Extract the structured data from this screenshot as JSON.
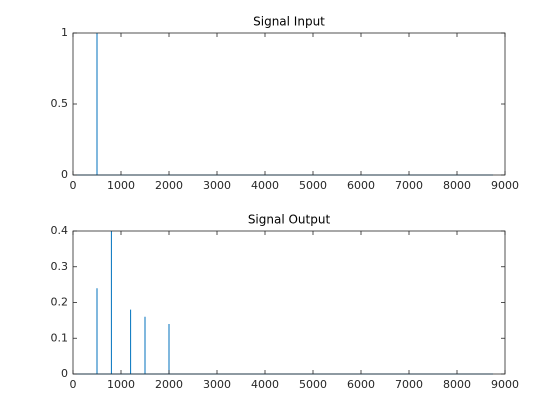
{
  "chart_data": [
    {
      "type": "line",
      "title": "Signal Input",
      "x": [
        0,
        500,
        500,
        500,
        8750
      ],
      "values": [
        0,
        0,
        1,
        0,
        0
      ],
      "color": "#0072bd",
      "xlim": [
        0,
        9000
      ],
      "xticks": [
        0,
        1000,
        2000,
        3000,
        4000,
        5000,
        6000,
        7000,
        8000,
        9000
      ],
      "ylim": [
        0,
        1
      ],
      "yticks": [
        0,
        0.5,
        1
      ]
    },
    {
      "type": "line",
      "title": "Signal Output",
      "x": [
        0,
        500,
        500,
        500,
        800,
        800,
        800,
        1200,
        1200,
        1200,
        1500,
        1500,
        1500,
        2000,
        2000,
        2000,
        8750
      ],
      "values": [
        0,
        0,
        0.24,
        0,
        0,
        0.4,
        0,
        0,
        0.18,
        0,
        0,
        0.16,
        0,
        0,
        0.14,
        0,
        0
      ],
      "color": "#0072bd",
      "xlim": [
        0,
        9000
      ],
      "xticks": [
        0,
        1000,
        2000,
        3000,
        4000,
        5000,
        6000,
        7000,
        8000,
        9000
      ],
      "ylim": [
        0,
        0.4
      ],
      "yticks": [
        0,
        0.1,
        0.2,
        0.3,
        0.4
      ]
    }
  ]
}
